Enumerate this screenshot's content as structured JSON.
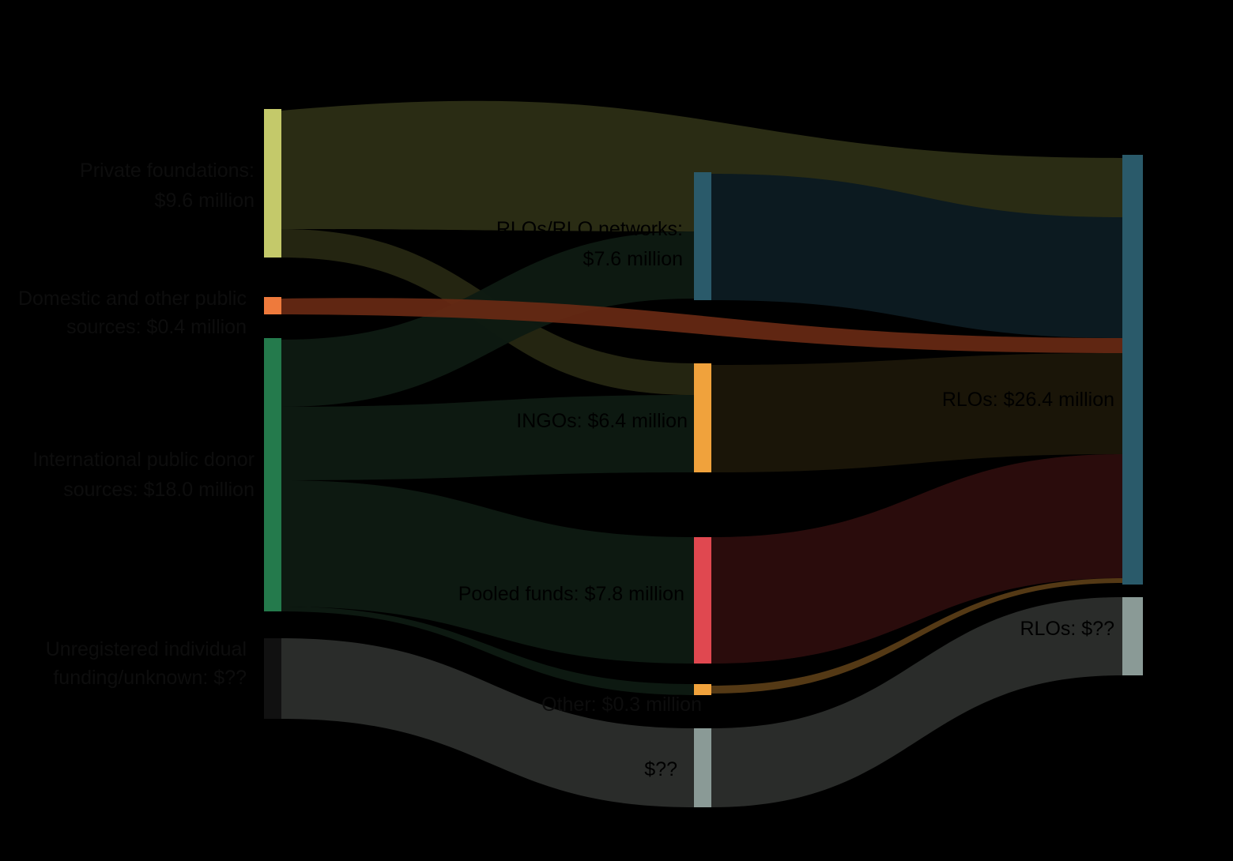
{
  "colors": {
    "background": "#000000",
    "private_philanthropy": "#c4c96a",
    "private_philanthropy_flow": "#2a2c14",
    "domestic_public": "#ee7a3c",
    "domestic_public_flow": "#6a2a14",
    "international_public": "#247a4c",
    "international_public_flow": "#0d1a12",
    "unregistered": "#111111",
    "unregistered_flow": "#2a2c2a",
    "rlo_networks": "#2a5a6a",
    "rlo_networks_flow": "#0c1a20",
    "ingos": "#f0a23c",
    "ingos_flow": "#1a1508",
    "pooled_funds": "#e04850",
    "pooled_funds_flow": "#2a0c0c",
    "other_small": "#f0a23c",
    "unknown_mid": "#8a9a96",
    "rlos": "#2a5a6a",
    "rlos_unknown": "#8a9a96"
  },
  "nodes": {
    "private_philanthropy": {
      "label_line1": "Private foundations:",
      "label_line2": "$9.6 million"
    },
    "domestic_public": {
      "label_line1": "Domestic and other public",
      "label_line2": "sources: $0.4 million"
    },
    "international_public": {
      "label_line1": "International public donor",
      "label_line2": "sources: $18.0 million"
    },
    "unregistered": {
      "label_line1": "Unregistered individual",
      "label_line2": "funding/unknown: $??"
    },
    "rlo_networks": {
      "label_line1": "RLOs/RLO networks:",
      "label_line2": "$7.6 million"
    },
    "ingos": {
      "label": "INGOs: $6.4 million"
    },
    "pooled_funds": {
      "label": "Pooled funds: $7.8 million"
    },
    "other_small": {
      "label": "Other: $0.3 million"
    },
    "unknown_mid": {
      "label": "$??"
    },
    "rlos": {
      "label": "RLOs: $26.4 million"
    },
    "rlos_unknown": {
      "label": "RLOs: $??"
    }
  }
}
